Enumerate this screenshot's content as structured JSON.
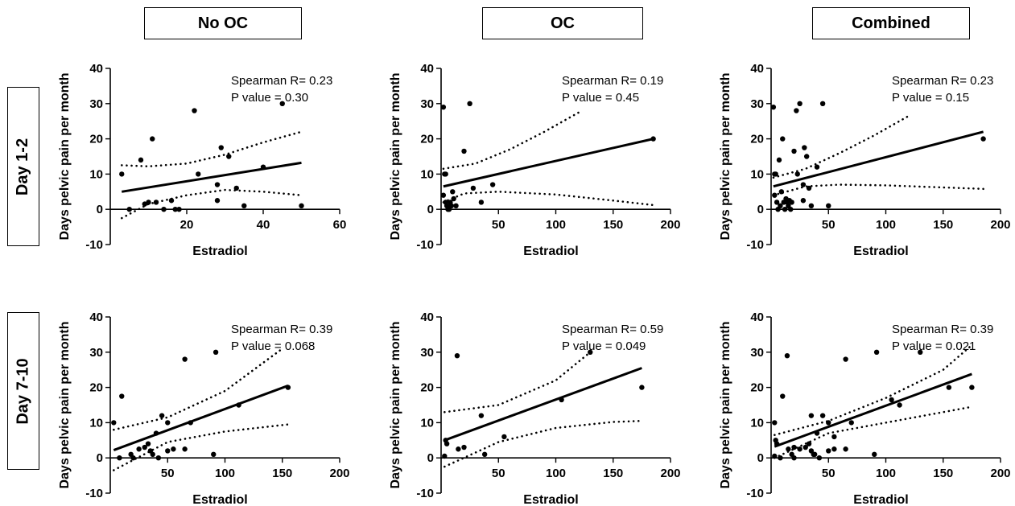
{
  "headers": {
    "columns": [
      "No OC",
      "OC",
      "Combined"
    ],
    "rows": [
      "Day 1-2",
      "Day 7-10"
    ]
  },
  "chart_data": [
    {
      "type": "scatter",
      "row": "Day 1-2",
      "column": "No OC",
      "xlabel": "Estradiol",
      "ylabel": "Days pelvic pain per month",
      "xlim": [
        0,
        60
      ],
      "ylim": [
        -10,
        40
      ],
      "xticks": [
        20,
        40,
        60
      ],
      "yticks": [
        -10,
        0,
        10,
        20,
        30,
        40
      ],
      "annotation": [
        "Spearman R= 0.23",
        "P value = 0.30"
      ],
      "points": [
        [
          3,
          10
        ],
        [
          5,
          0
        ],
        [
          8,
          14
        ],
        [
          9,
          1.5
        ],
        [
          10,
          2
        ],
        [
          11,
          20
        ],
        [
          12,
          2
        ],
        [
          14,
          0
        ],
        [
          16,
          2.5
        ],
        [
          17,
          0
        ],
        [
          18,
          0
        ],
        [
          22,
          28
        ],
        [
          23,
          10
        ],
        [
          28,
          7
        ],
        [
          28,
          2.5
        ],
        [
          29,
          17.5
        ],
        [
          31,
          15
        ],
        [
          33,
          6
        ],
        [
          35,
          1
        ],
        [
          40,
          12
        ],
        [
          45,
          30
        ],
        [
          50,
          1
        ]
      ],
      "fit": {
        "x": [
          3,
          50
        ],
        "y": [
          5,
          13.2
        ]
      },
      "ci_upper": {
        "x": [
          3,
          10,
          20,
          30,
          40,
          50
        ],
        "y": [
          12.5,
          12.2,
          13,
          15.5,
          19,
          22
        ]
      },
      "ci_lower": {
        "x": [
          3,
          10,
          20,
          30,
          40,
          50
        ],
        "y": [
          -2.5,
          1.5,
          4,
          5.5,
          5,
          4
        ]
      }
    },
    {
      "type": "scatter",
      "row": "Day 1-2",
      "column": "OC",
      "xlabel": "Estradiol",
      "ylabel": "Days pelvic pain per month",
      "xlim": [
        0,
        200
      ],
      "ylim": [
        -10,
        40
      ],
      "xticks": [
        50,
        100,
        150,
        200
      ],
      "yticks": [
        -10,
        0,
        10,
        20,
        30,
        40
      ],
      "annotation": [
        "Spearman R= 0.19",
        "P value = 0.45"
      ],
      "points": [
        [
          2,
          29
        ],
        [
          2,
          4
        ],
        [
          3,
          10
        ],
        [
          4,
          10
        ],
        [
          4,
          2
        ],
        [
          5,
          1
        ],
        [
          6,
          0
        ],
        [
          7,
          0
        ],
        [
          8,
          2
        ],
        [
          9,
          1
        ],
        [
          10,
          5
        ],
        [
          11,
          3
        ],
        [
          13,
          1
        ],
        [
          20,
          16.5
        ],
        [
          25,
          30
        ],
        [
          28,
          6
        ],
        [
          35,
          2
        ],
        [
          45,
          7
        ],
        [
          185,
          20
        ]
      ],
      "fit": {
        "x": [
          2,
          185
        ],
        "y": [
          6.5,
          20
        ]
      },
      "ci_upper": {
        "x": [
          2,
          30,
          60,
          90,
          120
        ],
        "y": [
          11.5,
          13,
          17,
          22,
          27.5
        ]
      },
      "ci_lower": {
        "x": [
          2,
          20,
          50,
          100,
          150,
          185
        ],
        "y": [
          2,
          4.5,
          5,
          4.2,
          2.5,
          1.2
        ]
      }
    },
    {
      "type": "scatter",
      "row": "Day 1-2",
      "column": "Combined",
      "xlabel": "Estradiol",
      "ylabel": "Days pelvic pain per month",
      "xlim": [
        0,
        200
      ],
      "ylim": [
        -10,
        40
      ],
      "xticks": [
        50,
        100,
        150,
        200
      ],
      "yticks": [
        -10,
        0,
        10,
        20,
        30,
        40
      ],
      "annotation": [
        "Spearman R= 0.23",
        "P value = 0.15"
      ],
      "points": [
        [
          2,
          29
        ],
        [
          3,
          10
        ],
        [
          3,
          4
        ],
        [
          4,
          10
        ],
        [
          5,
          2
        ],
        [
          6,
          0
        ],
        [
          7,
          14
        ],
        [
          8,
          1
        ],
        [
          9,
          5
        ],
        [
          10,
          20
        ],
        [
          11,
          2
        ],
        [
          12,
          0
        ],
        [
          13,
          3
        ],
        [
          14,
          2
        ],
        [
          15,
          1
        ],
        [
          16,
          2.5
        ],
        [
          17,
          0
        ],
        [
          18,
          2
        ],
        [
          20,
          16.5
        ],
        [
          22,
          28
        ],
        [
          23,
          10
        ],
        [
          25,
          30
        ],
        [
          28,
          7
        ],
        [
          28,
          2.5
        ],
        [
          29,
          17.5
        ],
        [
          31,
          15
        ],
        [
          33,
          6
        ],
        [
          35,
          1
        ],
        [
          40,
          12
        ],
        [
          45,
          30
        ],
        [
          50,
          1
        ],
        [
          185,
          20
        ]
      ],
      "fit": {
        "x": [
          2,
          185
        ],
        "y": [
          6.5,
          22
        ]
      },
      "ci_upper": {
        "x": [
          2,
          30,
          60,
          90,
          120
        ],
        "y": [
          9,
          11.5,
          16,
          21,
          26.5
        ]
      },
      "ci_lower": {
        "x": [
          2,
          30,
          60,
          100,
          150,
          185
        ],
        "y": [
          4,
          6.5,
          7,
          6.8,
          6.2,
          5.8
        ]
      }
    },
    {
      "type": "scatter",
      "row": "Day 7-10",
      "column": "No OC",
      "xlabel": "Estradiol",
      "ylabel": "Days pelvic pain per month",
      "xlim": [
        0,
        200
      ],
      "ylim": [
        -10,
        40
      ],
      "xticks": [
        50,
        100,
        150,
        200
      ],
      "yticks": [
        -10,
        0,
        10,
        20,
        30,
        40
      ],
      "annotation": [
        "Spearman R= 0.39",
        "P value = 0.068"
      ],
      "points": [
        [
          3,
          10
        ],
        [
          8,
          0
        ],
        [
          10,
          17.5
        ],
        [
          18,
          1
        ],
        [
          20,
          0
        ],
        [
          25,
          2.5
        ],
        [
          30,
          3
        ],
        [
          33,
          4
        ],
        [
          35,
          2
        ],
        [
          37,
          1
        ],
        [
          40,
          7
        ],
        [
          42,
          0
        ],
        [
          45,
          12
        ],
        [
          50,
          10
        ],
        [
          50,
          2
        ],
        [
          55,
          2.5
        ],
        [
          65,
          28
        ],
        [
          65,
          2.5
        ],
        [
          70,
          10
        ],
        [
          90,
          1
        ],
        [
          92,
          30
        ],
        [
          112,
          15
        ],
        [
          155,
          20
        ]
      ],
      "fit": {
        "x": [
          3,
          155
        ],
        "y": [
          2.2,
          20.5
        ]
      },
      "ci_upper": {
        "x": [
          3,
          50,
          100,
          150
        ],
        "y": [
          8,
          11.5,
          19,
          31
        ]
      },
      "ci_lower": {
        "x": [
          3,
          50,
          100,
          155
        ],
        "y": [
          -3.5,
          4.5,
          7.5,
          9.5
        ]
      }
    },
    {
      "type": "scatter",
      "row": "Day 7-10",
      "column": "OC",
      "xlabel": "Estradiol",
      "ylabel": "Days pelvic pain per month",
      "xlim": [
        0,
        200
      ],
      "ylim": [
        -10,
        40
      ],
      "xticks": [
        50,
        100,
        150,
        200
      ],
      "yticks": [
        -10,
        0,
        10,
        20,
        30,
        40
      ],
      "annotation": [
        "Spearman R= 0.59",
        "P value = 0.049"
      ],
      "points": [
        [
          3,
          0.5
        ],
        [
          4,
          5
        ],
        [
          5,
          4
        ],
        [
          14,
          29
        ],
        [
          15,
          2.5
        ],
        [
          20,
          3
        ],
        [
          35,
          12
        ],
        [
          38,
          1
        ],
        [
          55,
          6
        ],
        [
          105,
          16.5
        ],
        [
          130,
          30
        ],
        [
          175,
          20
        ]
      ],
      "fit": {
        "x": [
          3,
          175
        ],
        "y": [
          5,
          25.5
        ]
      },
      "ci_upper": {
        "x": [
          3,
          50,
          100,
          130
        ],
        "y": [
          13,
          15,
          22,
          30
        ]
      },
      "ci_lower": {
        "x": [
          3,
          50,
          100,
          150,
          175
        ],
        "y": [
          -2.5,
          4.5,
          8.5,
          10.2,
          10.5
        ]
      }
    },
    {
      "type": "scatter",
      "row": "Day 7-10",
      "column": "Combined",
      "xlabel": "Estradiol",
      "ylabel": "Days pelvic pain per month",
      "xlim": [
        0,
        200
      ],
      "ylim": [
        -10,
        40
      ],
      "xticks": [
        50,
        100,
        150,
        200
      ],
      "yticks": [
        -10,
        0,
        10,
        20,
        30,
        40
      ],
      "annotation": [
        "Spearman R= 0.39",
        "P value = 0.021"
      ],
      "points": [
        [
          3,
          10
        ],
        [
          3,
          0.5
        ],
        [
          4,
          5
        ],
        [
          5,
          4
        ],
        [
          8,
          0
        ],
        [
          10,
          17.5
        ],
        [
          14,
          29
        ],
        [
          15,
          2.5
        ],
        [
          18,
          1
        ],
        [
          20,
          3
        ],
        [
          20,
          0
        ],
        [
          25,
          2.5
        ],
        [
          30,
          3
        ],
        [
          33,
          4
        ],
        [
          35,
          12
        ],
        [
          35,
          2
        ],
        [
          37,
          1
        ],
        [
          38,
          1
        ],
        [
          40,
          7
        ],
        [
          42,
          0
        ],
        [
          45,
          12
        ],
        [
          50,
          10
        ],
        [
          50,
          2
        ],
        [
          55,
          6
        ],
        [
          55,
          2.5
        ],
        [
          65,
          28
        ],
        [
          65,
          2.5
        ],
        [
          70,
          10
        ],
        [
          90,
          1
        ],
        [
          92,
          30
        ],
        [
          105,
          16.5
        ],
        [
          112,
          15
        ],
        [
          130,
          30
        ],
        [
          155,
          20
        ],
        [
          175,
          20
        ]
      ],
      "fit": {
        "x": [
          3,
          175
        ],
        "y": [
          3.2,
          23.8
        ]
      },
      "ci_upper": {
        "x": [
          3,
          50,
          100,
          150,
          175
        ],
        "y": [
          6.5,
          10.5,
          17,
          25,
          32
        ]
      },
      "ci_lower": {
        "x": [
          3,
          50,
          100,
          150,
          175
        ],
        "y": [
          0,
          7,
          10,
          13,
          14.5
        ]
      }
    }
  ]
}
